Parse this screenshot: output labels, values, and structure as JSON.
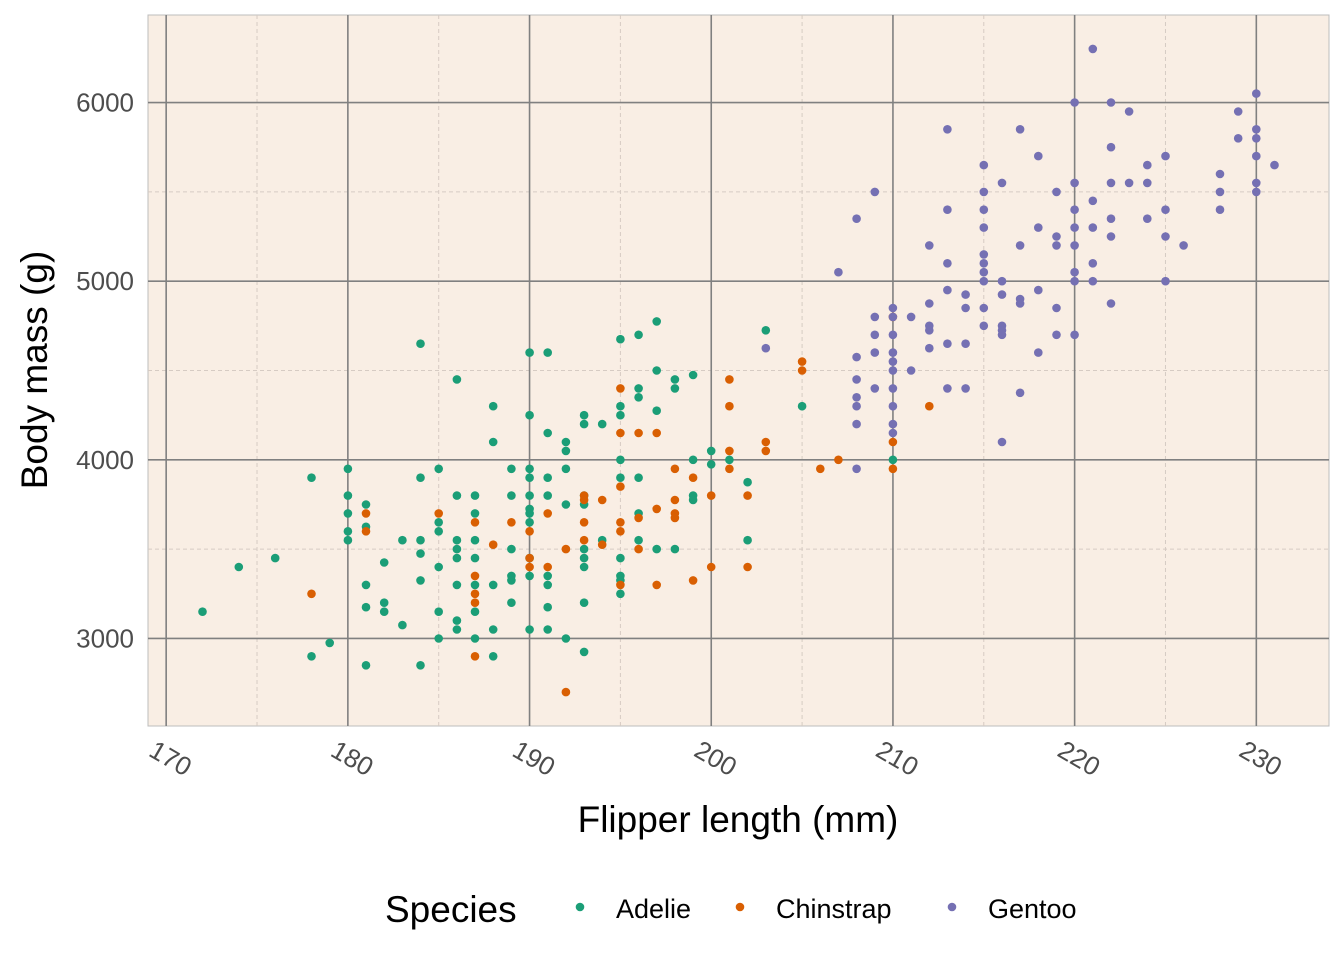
{
  "chart_data": {
    "type": "scatter",
    "title": "",
    "xlabel": "Flipper length (mm)",
    "ylabel": "Body mass (g)",
    "xlim": [
      169,
      234
    ],
    "ylim": [
      2510,
      6490
    ],
    "xticks": [
      170,
      180,
      190,
      200,
      210,
      220,
      230
    ],
    "yticks": [
      3000,
      4000,
      5000,
      6000
    ],
    "grid": true,
    "background": "#f9eee4",
    "legend": {
      "title": "Species",
      "position": "bottom"
    },
    "series": [
      {
        "name": "Adelie",
        "color": "#1b9e77",
        "points": [
          [
            172,
            3150
          ],
          [
            174,
            3400
          ],
          [
            176,
            3450
          ],
          [
            178,
            3900
          ],
          [
            178,
            2900
          ],
          [
            179,
            2975
          ],
          [
            180,
            3950
          ],
          [
            180,
            3800
          ],
          [
            180,
            3700
          ],
          [
            180,
            3600
          ],
          [
            180,
            3550
          ],
          [
            181,
            3750
          ],
          [
            181,
            3625
          ],
          [
            181,
            3300
          ],
          [
            181,
            3175
          ],
          [
            181,
            2850
          ],
          [
            182,
            3425
          ],
          [
            182,
            3200
          ],
          [
            182,
            3150
          ],
          [
            183,
            3550
          ],
          [
            183,
            3075
          ],
          [
            184,
            4650
          ],
          [
            184,
            3900
          ],
          [
            184,
            3550
          ],
          [
            184,
            3475
          ],
          [
            184,
            3325
          ],
          [
            184,
            2850
          ],
          [
            185,
            3950
          ],
          [
            185,
            3650
          ],
          [
            185,
            3600
          ],
          [
            185,
            3400
          ],
          [
            185,
            3150
          ],
          [
            185,
            3000
          ],
          [
            186,
            4450
          ],
          [
            186,
            3800
          ],
          [
            186,
            3550
          ],
          [
            186,
            3500
          ],
          [
            186,
            3450
          ],
          [
            186,
            3300
          ],
          [
            186,
            3100
          ],
          [
            186,
            3050
          ],
          [
            187,
            3800
          ],
          [
            187,
            3700
          ],
          [
            187,
            3550
          ],
          [
            187,
            3450
          ],
          [
            187,
            3300
          ],
          [
            187,
            3150
          ],
          [
            187,
            3000
          ],
          [
            188,
            4300
          ],
          [
            188,
            4100
          ],
          [
            188,
            3300
          ],
          [
            188,
            3050
          ],
          [
            188,
            2900
          ],
          [
            189,
            3950
          ],
          [
            189,
            3800
          ],
          [
            189,
            3500
          ],
          [
            189,
            3350
          ],
          [
            189,
            3325
          ],
          [
            189,
            3200
          ],
          [
            190,
            4600
          ],
          [
            190,
            4250
          ],
          [
            190,
            3950
          ],
          [
            190,
            3900
          ],
          [
            190,
            3800
          ],
          [
            190,
            3725
          ],
          [
            190,
            3700
          ],
          [
            190,
            3650
          ],
          [
            190,
            3450
          ],
          [
            190,
            3350
          ],
          [
            190,
            3050
          ],
          [
            191,
            4600
          ],
          [
            191,
            4150
          ],
          [
            191,
            3900
          ],
          [
            191,
            3800
          ],
          [
            191,
            3350
          ],
          [
            191,
            3300
          ],
          [
            191,
            3175
          ],
          [
            191,
            3050
          ],
          [
            192,
            4100
          ],
          [
            192,
            4050
          ],
          [
            192,
            3950
          ],
          [
            192,
            3750
          ],
          [
            192,
            3000
          ],
          [
            193,
            4250
          ],
          [
            193,
            4200
          ],
          [
            193,
            3800
          ],
          [
            193,
            3750
          ],
          [
            193,
            3500
          ],
          [
            193,
            3450
          ],
          [
            193,
            3400
          ],
          [
            193,
            3200
          ],
          [
            193,
            2925
          ],
          [
            194,
            4200
          ],
          [
            194,
            3550
          ],
          [
            195,
            4675
          ],
          [
            195,
            4300
          ],
          [
            195,
            4250
          ],
          [
            195,
            4000
          ],
          [
            195,
            3900
          ],
          [
            195,
            3450
          ],
          [
            195,
            3350
          ],
          [
            195,
            3325
          ],
          [
            195,
            3250
          ],
          [
            196,
            4700
          ],
          [
            196,
            4400
          ],
          [
            196,
            4350
          ],
          [
            196,
            3900
          ],
          [
            196,
            3700
          ],
          [
            196,
            3550
          ],
          [
            197,
            4775
          ],
          [
            197,
            4500
          ],
          [
            197,
            4275
          ],
          [
            197,
            3500
          ],
          [
            198,
            4450
          ],
          [
            198,
            4400
          ],
          [
            198,
            3500
          ],
          [
            199,
            4475
          ],
          [
            199,
            4000
          ],
          [
            199,
            3800
          ],
          [
            199,
            3775
          ],
          [
            200,
            4050
          ],
          [
            200,
            3975
          ],
          [
            201,
            4000
          ],
          [
            202,
            3875
          ],
          [
            202,
            3550
          ],
          [
            203,
            4725
          ],
          [
            205,
            4300
          ],
          [
            210,
            4000
          ]
        ]
      },
      {
        "name": "Chinstrap",
        "color": "#d95f02",
        "points": [
          [
            178,
            3250
          ],
          [
            181,
            3700
          ],
          [
            181,
            3600
          ],
          [
            185,
            3700
          ],
          [
            187,
            3650
          ],
          [
            187,
            3350
          ],
          [
            187,
            3250
          ],
          [
            187,
            3200
          ],
          [
            187,
            2900
          ],
          [
            188,
            3525
          ],
          [
            189,
            3650
          ],
          [
            190,
            3600
          ],
          [
            190,
            3450
          ],
          [
            190,
            3400
          ],
          [
            191,
            3700
          ],
          [
            191,
            3400
          ],
          [
            192,
            3500
          ],
          [
            192,
            2700
          ],
          [
            193,
            3800
          ],
          [
            193,
            3775
          ],
          [
            193,
            3650
          ],
          [
            193,
            3550
          ],
          [
            194,
            3775
          ],
          [
            194,
            3525
          ],
          [
            195,
            4400
          ],
          [
            195,
            4150
          ],
          [
            195,
            3850
          ],
          [
            195,
            3650
          ],
          [
            195,
            3600
          ],
          [
            195,
            3300
          ],
          [
            196,
            4150
          ],
          [
            196,
            3675
          ],
          [
            196,
            3500
          ],
          [
            197,
            4150
          ],
          [
            197,
            3725
          ],
          [
            197,
            3300
          ],
          [
            198,
            3950
          ],
          [
            198,
            3775
          ],
          [
            198,
            3700
          ],
          [
            198,
            3675
          ],
          [
            199,
            3900
          ],
          [
            199,
            3325
          ],
          [
            200,
            3800
          ],
          [
            200,
            3400
          ],
          [
            201,
            4450
          ],
          [
            201,
            4300
          ],
          [
            201,
            4050
          ],
          [
            201,
            3950
          ],
          [
            202,
            3800
          ],
          [
            202,
            3400
          ],
          [
            203,
            4100
          ],
          [
            203,
            4050
          ],
          [
            205,
            4550
          ],
          [
            205,
            4500
          ],
          [
            206,
            3950
          ],
          [
            207,
            4000
          ],
          [
            210,
            4800
          ],
          [
            210,
            4100
          ],
          [
            210,
            3950
          ],
          [
            212,
            4300
          ]
        ]
      },
      {
        "name": "Gentoo",
        "color": "#7570b3",
        "points": [
          [
            203,
            4625
          ],
          [
            207,
            5050
          ],
          [
            208,
            5350
          ],
          [
            208,
            4575
          ],
          [
            208,
            4450
          ],
          [
            208,
            4350
          ],
          [
            208,
            4300
          ],
          [
            208,
            4200
          ],
          [
            208,
            3950
          ],
          [
            209,
            5500
          ],
          [
            209,
            4800
          ],
          [
            209,
            4700
          ],
          [
            209,
            4600
          ],
          [
            209,
            4400
          ],
          [
            210,
            4850
          ],
          [
            210,
            4800
          ],
          [
            210,
            4700
          ],
          [
            210,
            4600
          ],
          [
            210,
            4550
          ],
          [
            210,
            4500
          ],
          [
            210,
            4400
          ],
          [
            210,
            4300
          ],
          [
            210,
            4200
          ],
          [
            210,
            4150
          ],
          [
            211,
            4800
          ],
          [
            211,
            4500
          ],
          [
            212,
            5200
          ],
          [
            212,
            4875
          ],
          [
            212,
            4750
          ],
          [
            212,
            4725
          ],
          [
            212,
            4625
          ],
          [
            213,
            5850
          ],
          [
            213,
            5400
          ],
          [
            213,
            5100
          ],
          [
            213,
            4950
          ],
          [
            213,
            4650
          ],
          [
            213,
            4400
          ],
          [
            214,
            4925
          ],
          [
            214,
            4850
          ],
          [
            214,
            4650
          ],
          [
            214,
            4400
          ],
          [
            215,
            5650
          ],
          [
            215,
            5500
          ],
          [
            215,
            5400
          ],
          [
            215,
            5300
          ],
          [
            215,
            5150
          ],
          [
            215,
            5100
          ],
          [
            215,
            5050
          ],
          [
            215,
            5000
          ],
          [
            215,
            4850
          ],
          [
            215,
            4750
          ],
          [
            216,
            5550
          ],
          [
            216,
            5000
          ],
          [
            216,
            4925
          ],
          [
            216,
            4750
          ],
          [
            216,
            4725
          ],
          [
            216,
            4700
          ],
          [
            216,
            4100
          ],
          [
            217,
            5850
          ],
          [
            217,
            5200
          ],
          [
            217,
            4900
          ],
          [
            217,
            4875
          ],
          [
            217,
            4375
          ],
          [
            218,
            5700
          ],
          [
            218,
            5300
          ],
          [
            218,
            4950
          ],
          [
            218,
            4600
          ],
          [
            219,
            5500
          ],
          [
            219,
            5250
          ],
          [
            219,
            5200
          ],
          [
            219,
            4850
          ],
          [
            219,
            4700
          ],
          [
            220,
            6000
          ],
          [
            220,
            5550
          ],
          [
            220,
            5400
          ],
          [
            220,
            5300
          ],
          [
            220,
            5200
          ],
          [
            220,
            5050
          ],
          [
            220,
            5000
          ],
          [
            220,
            4700
          ],
          [
            221,
            6300
          ],
          [
            221,
            5450
          ],
          [
            221,
            5300
          ],
          [
            221,
            5100
          ],
          [
            221,
            5000
          ],
          [
            222,
            6000
          ],
          [
            222,
            5750
          ],
          [
            222,
            5550
          ],
          [
            222,
            5350
          ],
          [
            222,
            5250
          ],
          [
            222,
            4875
          ],
          [
            223,
            5950
          ],
          [
            223,
            5550
          ],
          [
            224,
            5650
          ],
          [
            224,
            5550
          ],
          [
            224,
            5350
          ],
          [
            225,
            5700
          ],
          [
            225,
            5400
          ],
          [
            225,
            5250
          ],
          [
            225,
            5000
          ],
          [
            226,
            5200
          ],
          [
            228,
            5600
          ],
          [
            228,
            5500
          ],
          [
            228,
            5400
          ],
          [
            229,
            5950
          ],
          [
            229,
            5800
          ],
          [
            230,
            6050
          ],
          [
            230,
            5850
          ],
          [
            230,
            5800
          ],
          [
            230,
            5700
          ],
          [
            230,
            5550
          ],
          [
            230,
            5500
          ],
          [
            231,
            5650
          ]
        ]
      }
    ]
  }
}
